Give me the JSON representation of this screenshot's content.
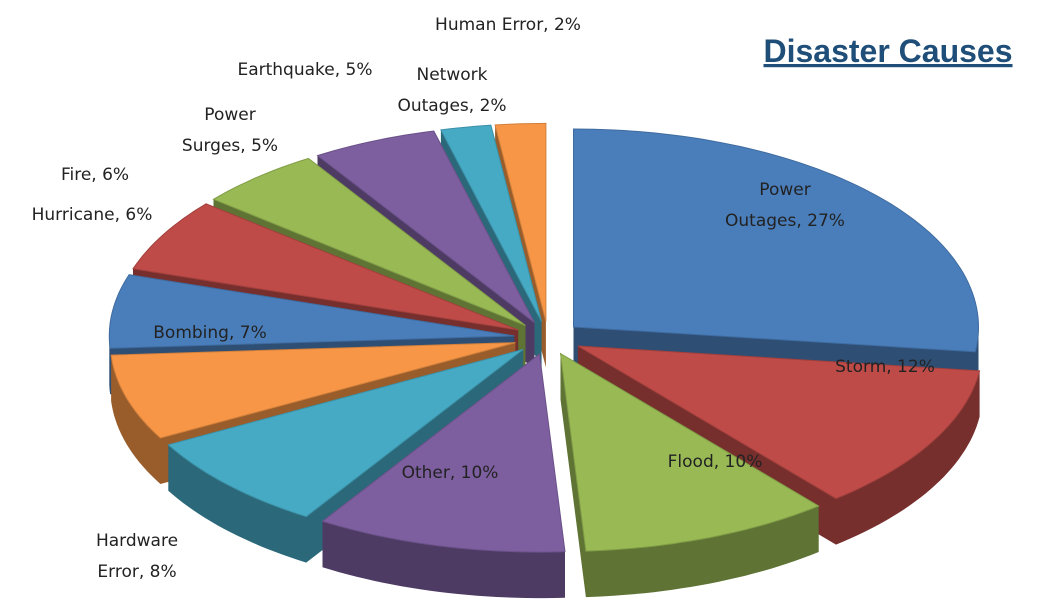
{
  "chart_data": {
    "type": "pie3d",
    "title": "Disaster Causes",
    "labels": [
      "Power Outages, 27%",
      "Storm, 12%",
      "Flood, 10%",
      "Other, 10%",
      "Hardware Error, 8%",
      "Bombing, 7%",
      "Hurricane, 6%",
      "Fire, 6%",
      "Power Surges, 5%",
      "Earthquake, 5%",
      "Network Outages, 2%",
      "Human Error, 2%"
    ],
    "values": [
      27,
      12,
      10,
      10,
      8,
      7,
      6,
      6,
      5,
      5,
      2,
      2
    ],
    "colors": [
      "#4a7ebb",
      "#be4b48",
      "#98b954",
      "#7d5fa0",
      "#46aac5",
      "#f79646",
      "#4a7ebb",
      "#be4b48",
      "#98b954",
      "#7d5fa0",
      "#46aac5",
      "#f79646"
    ]
  }
}
